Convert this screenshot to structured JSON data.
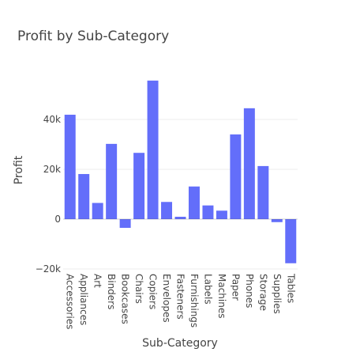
{
  "chart_data": {
    "type": "bar",
    "title": "Profit by Sub-Category",
    "xlabel": "Sub-Category",
    "ylabel": "Profit",
    "categories": [
      "Accessories",
      "Appliances",
      "Art",
      "Binders",
      "Bookcases",
      "Chairs",
      "Copiers",
      "Envelopes",
      "Fasteners",
      "Furnishings",
      "Labels",
      "Machines",
      "Paper",
      "Phones",
      "Storage",
      "Supplies",
      "Tables"
    ],
    "values": [
      41900,
      18100,
      6500,
      30200,
      -3500,
      26600,
      55600,
      6900,
      950,
      13100,
      5500,
      3400,
      34000,
      44500,
      21300,
      -1200,
      -17700
    ],
    "ylim": [
      -20000,
      60000
    ],
    "yticks": [
      -20000,
      0,
      20000,
      40000
    ],
    "ytick_labels": [
      "−20k",
      "0",
      "20k",
      "40k"
    ],
    "bar_color": "#636efa",
    "grid": true
  }
}
